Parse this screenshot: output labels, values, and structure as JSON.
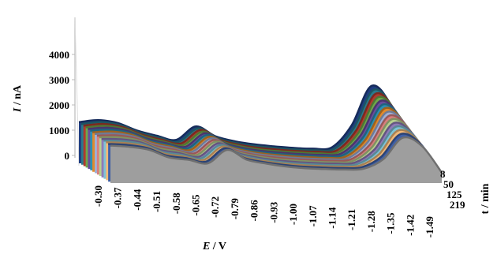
{
  "chart_data": {
    "type": "area",
    "title": "",
    "ylabel_italic": "I",
    "ylabel_unit": " / nA",
    "xlabel_italic": "E",
    "xlabel_unit": " / V",
    "zlabel": "t / min",
    "y_ticks": [
      "0",
      "1000",
      "2000",
      "3000",
      "4000"
    ],
    "ylim": [
      0,
      4000
    ],
    "x_ticks": [
      "-0.30",
      "-0.37",
      "-0.44",
      "-0.51",
      "-0.58",
      "-0.65",
      "-0.72",
      "-0.79",
      "-0.86",
      "-0.93",
      "-1.00",
      "-1.07",
      "-1.14",
      "-1.21",
      "-1.28",
      "-1.35",
      "-1.42",
      "-1.49"
    ],
    "z_ticks": [
      "8",
      "50",
      "125",
      "219"
    ],
    "series": [
      {
        "color": "#1f3d82",
        "values": [
          1320,
          1400,
          1280,
          980,
          780,
          620,
          1150,
          760,
          560,
          440,
          360,
          300,
          270,
          330,
          1200,
          2750,
          2000,
          100
        ]
      },
      {
        "color": "#2a7a8c",
        "values": [
          1300,
          1380,
          1260,
          960,
          760,
          600,
          1130,
          740,
          540,
          420,
          350,
          290,
          260,
          320,
          1150,
          2650,
          1930,
          100
        ]
      },
      {
        "color": "#b03a2e",
        "values": [
          1290,
          1360,
          1240,
          940,
          740,
          590,
          1120,
          730,
          530,
          410,
          340,
          285,
          255,
          315,
          1110,
          2560,
          1860,
          100
        ]
      },
      {
        "color": "#6fa84a",
        "values": [
          1280,
          1340,
          1220,
          920,
          720,
          580,
          1110,
          720,
          520,
          400,
          330,
          280,
          250,
          310,
          1070,
          2470,
          1800,
          100
        ]
      },
      {
        "color": "#6a4c9c",
        "values": [
          1270,
          1320,
          1200,
          900,
          710,
          570,
          1100,
          710,
          510,
          395,
          325,
          275,
          248,
          305,
          1030,
          2380,
          1740,
          100
        ]
      },
      {
        "color": "#2c8fb3",
        "values": [
          1260,
          1300,
          1180,
          880,
          700,
          560,
          1090,
          700,
          500,
          390,
          320,
          272,
          245,
          300,
          990,
          2290,
          1680,
          100
        ]
      },
      {
        "color": "#e08a2c",
        "values": [
          1250,
          1280,
          1160,
          860,
          690,
          550,
          1080,
          690,
          495,
          385,
          315,
          268,
          242,
          295,
          950,
          2200,
          1620,
          100
        ]
      },
      {
        "color": "#9fb0d6",
        "values": [
          1240,
          1260,
          1140,
          840,
          680,
          540,
          1070,
          680,
          490,
          380,
          310,
          265,
          240,
          290,
          910,
          2110,
          1560,
          100
        ]
      },
      {
        "color": "#d97d7d",
        "values": [
          1230,
          1240,
          1120,
          820,
          670,
          530,
          1060,
          670,
          485,
          375,
          305,
          262,
          238,
          285,
          870,
          2020,
          1500,
          100
        ]
      },
      {
        "color": "#b7cf8e",
        "values": [
          1220,
          1220,
          1100,
          800,
          660,
          520,
          1050,
          660,
          480,
          370,
          300,
          258,
          235,
          280,
          830,
          1930,
          1440,
          100
        ]
      },
      {
        "color": "#8f7ab8",
        "values": [
          1210,
          1200,
          1080,
          780,
          650,
          510,
          1040,
          650,
          475,
          365,
          295,
          255,
          232,
          275,
          790,
          1840,
          1380,
          100
        ]
      },
      {
        "color": "#7ec3d6",
        "values": [
          1200,
          1180,
          1060,
          760,
          640,
          500,
          1030,
          640,
          470,
          360,
          290,
          252,
          230,
          270,
          750,
          1750,
          1320,
          100
        ]
      },
      {
        "color": "#f0b878",
        "values": [
          1190,
          1160,
          1040,
          740,
          630,
          490,
          1020,
          630,
          465,
          355,
          285,
          248,
          228,
          265,
          710,
          1660,
          1260,
          100
        ]
      },
      {
        "color": "#3f5fa6",
        "values": [
          1180,
          1140,
          1020,
          720,
          620,
          480,
          1010,
          620,
          460,
          350,
          280,
          245,
          225,
          260,
          670,
          1570,
          1200,
          100
        ]
      },
      {
        "color": "#9e9e9e",
        "values": [
          1170,
          1120,
          1000,
          700,
          610,
          470,
          1000,
          610,
          455,
          345,
          275,
          242,
          222,
          255,
          630,
          1480,
          1140,
          100
        ]
      }
    ]
  }
}
